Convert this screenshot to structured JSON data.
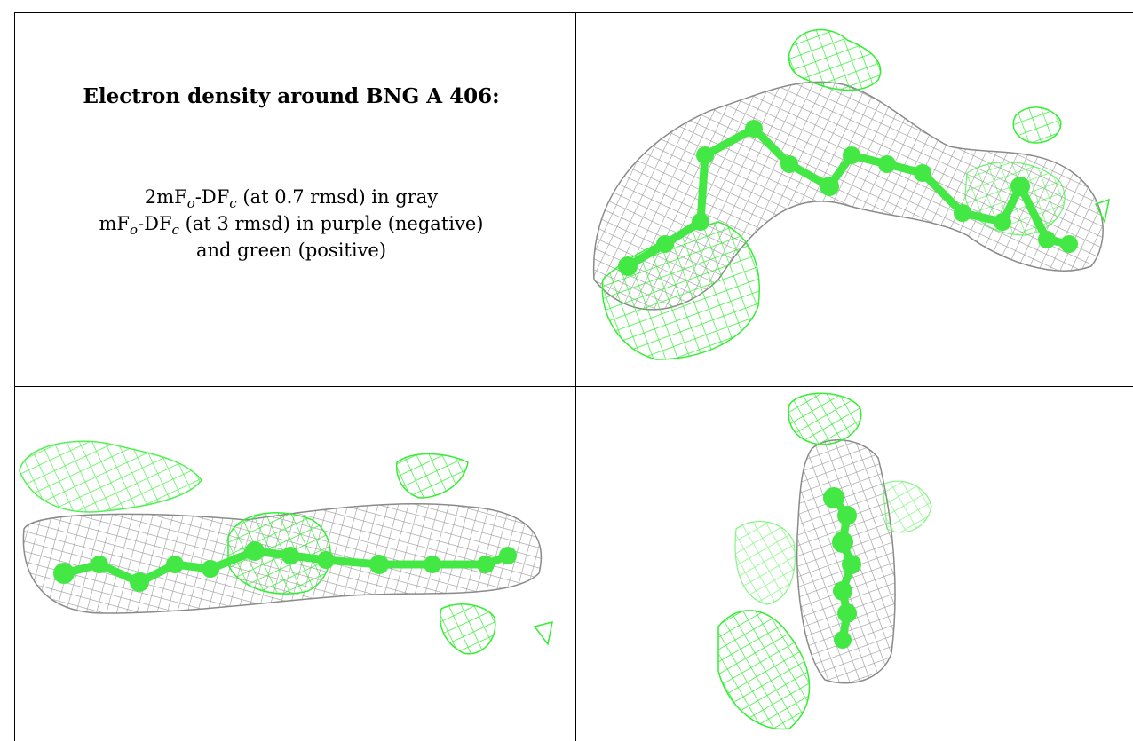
{
  "caption": {
    "title": "Electron density around BNG A 406:",
    "line1": {
      "prefix": "2mF",
      "sub1": "o",
      "mid": "-DF",
      "sub2": "c",
      "rest": " (at 0.7 rmsd) in gray"
    },
    "line2": {
      "prefix": "mF",
      "sub1": "o",
      "mid": "-DF",
      "sub2": "c",
      "rest": " (at 3 rmsd) in purple (negative)"
    },
    "line3": "and green (positive)"
  },
  "colors": {
    "map_2fofc": "#9a9a9a",
    "map_positive": "#33ee33",
    "ligand": "#44e844"
  },
  "panels": [
    {
      "name": "view-1",
      "icon": "electron-density-view-1-icon"
    },
    {
      "name": "view-2",
      "icon": "electron-density-view-2-icon"
    },
    {
      "name": "view-3",
      "icon": "electron-density-view-3-icon"
    }
  ]
}
